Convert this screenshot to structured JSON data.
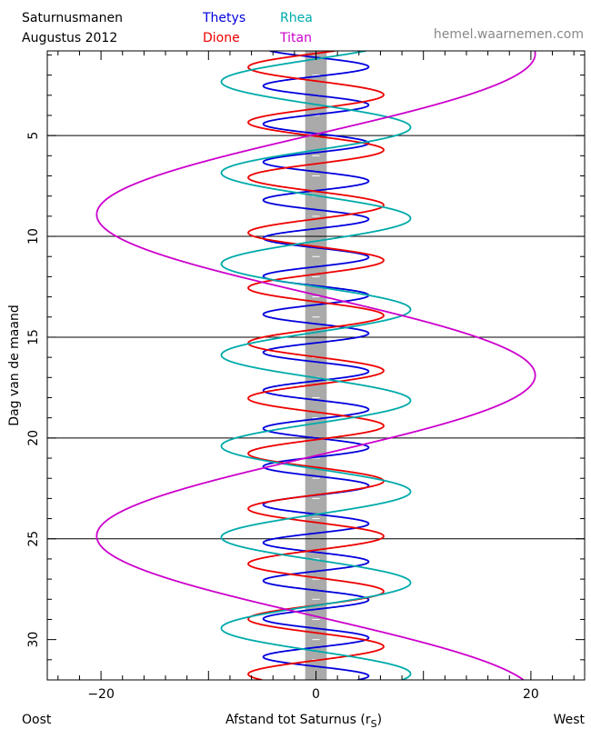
{
  "header": {
    "title_line1": "Saturnusmanen",
    "title_line2": "Augustus  2012",
    "site": "hemel.waarnemen.com"
  },
  "footer": {
    "left": "Oost",
    "center": "Afstand tot Saturnus (r",
    "center_sub": "S",
    "center_close": ")",
    "right": "West"
  },
  "colors": {
    "thetys": "#0000dd",
    "dione": "#ee0000",
    "rhea": "#00aaaa",
    "titan": "#cc00cc",
    "saturn_band": "#aaaaaa",
    "site": "#888888"
  },
  "chart_data": {
    "type": "line",
    "title": "Saturnusmanen",
    "subtitle": "Augustus  2012",
    "xlabel": "Afstand tot Saturnus (rS)",
    "ylabel": "Dag van de maand",
    "xlim": [
      -25,
      25
    ],
    "ylim": [
      0.8,
      32
    ],
    "y_inverted": true,
    "xticks": [
      -20,
      0,
      20
    ],
    "yticks": [
      5,
      10,
      15,
      20,
      25,
      30
    ],
    "horizontal_lines": [
      5,
      10,
      15,
      20,
      25
    ],
    "saturn_band": [
      -1,
      1
    ],
    "series": [
      {
        "name": "Thetys",
        "amplitude": 4.9,
        "period_days": 1.888,
        "phase_ref_day": 3.01
      },
      {
        "name": "Dione",
        "amplitude": 6.3,
        "period_days": 2.737,
        "phase_ref_day": 5.03
      },
      {
        "name": "Rhea",
        "amplitude": 8.8,
        "period_days": 4.518,
        "phase_ref_day": 3.46
      },
      {
        "name": "Titan",
        "amplitude": -20.4,
        "period_days": 15.945,
        "phase_ref_day": 4.93
      }
    ]
  }
}
